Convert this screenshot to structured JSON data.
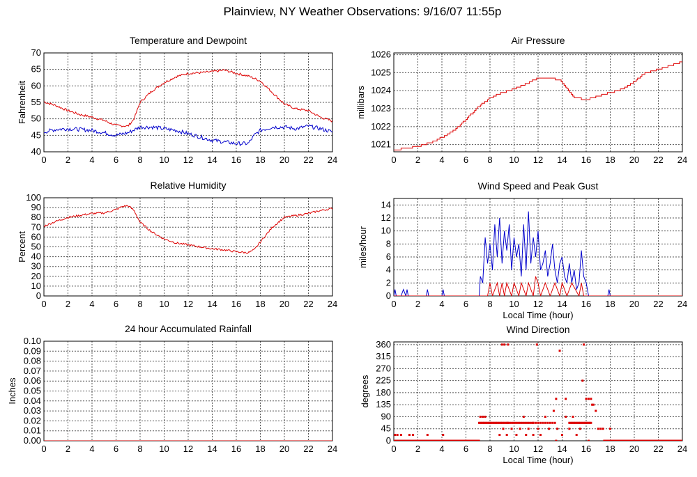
{
  "page": {
    "title": "Plainview, NY Weather Observations: 9/16/07 11:55p"
  },
  "colors": {
    "red": "#dd0000",
    "blue": "#0000cc",
    "grid": "#555555"
  },
  "chart_data": [
    {
      "id": "temp",
      "type": "line",
      "title": "Temperature and Dewpoint",
      "xlabel": "",
      "ylabel": "Fahrenheit",
      "xlim": [
        0,
        24
      ],
      "ylim": [
        40,
        70
      ],
      "xticks": [
        0,
        2,
        4,
        6,
        8,
        10,
        12,
        14,
        16,
        18,
        20,
        22,
        24
      ],
      "yticks": [
        40,
        45,
        50,
        55,
        60,
        65,
        70
      ],
      "grid": true,
      "series": [
        {
          "color": "red",
          "noise": 0.35,
          "x": [
            0,
            1,
            2,
            3,
            4,
            5,
            6,
            7,
            7.5,
            8,
            9,
            10,
            11,
            12,
            13,
            14,
            15,
            16,
            17,
            18,
            19,
            20,
            21,
            22,
            23,
            24
          ],
          "y": [
            55.2,
            54,
            52.5,
            51.3,
            50.5,
            49.5,
            48,
            47.8,
            50,
            55,
            58.5,
            61,
            62.8,
            63.8,
            64,
            64.3,
            64.8,
            63.8,
            63,
            61.5,
            58,
            54.5,
            53,
            52.5,
            50.5,
            49.3
          ]
        },
        {
          "color": "blue",
          "noise": 0.6,
          "x": [
            0,
            1,
            2,
            3,
            4,
            5,
            6,
            7,
            8,
            9,
            10,
            11,
            12,
            13,
            14,
            15,
            16,
            17,
            17.5,
            18,
            19,
            20,
            21,
            22,
            23,
            24
          ],
          "y": [
            46,
            46.8,
            47,
            46.8,
            46.5,
            45.8,
            45,
            45.8,
            47.5,
            47.5,
            47,
            46.5,
            45.5,
            44.5,
            43.5,
            43,
            42.5,
            42.5,
            45,
            46.5,
            47.5,
            47.5,
            47,
            47.8,
            47,
            46
          ]
        }
      ]
    },
    {
      "id": "pressure",
      "type": "line",
      "title": "Air Pressure",
      "xlabel": "",
      "ylabel": "millibars",
      "xlim": [
        0,
        24
      ],
      "ylim": [
        1020.6,
        1026.1
      ],
      "xticks": [
        0,
        2,
        4,
        6,
        8,
        10,
        12,
        14,
        16,
        18,
        20,
        22,
        24
      ],
      "yticks": [
        1021,
        1022,
        1023,
        1024,
        1025,
        1026
      ],
      "grid": true,
      "series": [
        {
          "color": "red",
          "noise": 0,
          "step": 0.1,
          "x": [
            0,
            1,
            2,
            3,
            4,
            5,
            6,
            7,
            8,
            9,
            10,
            11,
            12,
            13,
            13.8,
            14.5,
            15,
            16,
            17,
            18,
            19,
            20,
            20.5,
            21,
            22,
            23,
            24
          ],
          "y": [
            1020.7,
            1020.8,
            1020.9,
            1021.1,
            1021.4,
            1021.8,
            1022.4,
            1023.1,
            1023.6,
            1023.9,
            1024.1,
            1024.4,
            1024.7,
            1024.7,
            1024.6,
            1024.0,
            1023.6,
            1023.5,
            1023.7,
            1023.9,
            1024.1,
            1024.5,
            1024.8,
            1025.0,
            1025.2,
            1025.4,
            1025.6
          ]
        }
      ]
    },
    {
      "id": "humidity",
      "type": "line",
      "title": "Relative Humidity",
      "xlabel": "",
      "ylabel": "Percent",
      "xlim": [
        0,
        24
      ],
      "ylim": [
        0,
        100
      ],
      "xticks": [
        0,
        2,
        4,
        6,
        8,
        10,
        12,
        14,
        16,
        18,
        20,
        22,
        24
      ],
      "yticks": [
        0,
        10,
        20,
        30,
        40,
        50,
        60,
        70,
        80,
        90,
        100
      ],
      "grid": true,
      "series": [
        {
          "color": "red",
          "noise": 1.0,
          "x": [
            0,
            1,
            2,
            3,
            4,
            5,
            6,
            6.5,
            7,
            7.5,
            8,
            9,
            10,
            11,
            12,
            13,
            14,
            15,
            16,
            17,
            17.5,
            18,
            19,
            20,
            21,
            22,
            23,
            24
          ],
          "y": [
            71,
            76,
            80,
            82,
            84,
            84.5,
            88,
            91,
            92,
            87,
            75,
            65,
            58,
            54,
            52,
            50,
            48,
            47,
            45,
            44,
            47,
            55,
            70,
            80,
            82,
            84,
            87,
            89
          ]
        }
      ]
    },
    {
      "id": "wind",
      "type": "line",
      "title": "Wind Speed and Peak Gust",
      "xlabel": "Local Time (hour)",
      "ylabel": "miles/hour",
      "xlim": [
        0,
        24
      ],
      "ylim": [
        0,
        15
      ],
      "xticks": [
        0,
        2,
        4,
        6,
        8,
        10,
        12,
        14,
        16,
        18,
        20,
        22,
        24
      ],
      "yticks": [
        0,
        2,
        4,
        6,
        8,
        10,
        12,
        14
      ],
      "grid": true,
      "series": [
        {
          "color": "blue",
          "x": [
            0,
            0.1,
            0.2,
            0.6,
            0.8,
            1.0,
            1.1,
            1.2,
            2.7,
            2.8,
            2.9,
            4.0,
            4.1,
            4.2,
            7.1,
            7.2,
            7.4,
            7.6,
            7.8,
            8.0,
            8.2,
            8.4,
            8.6,
            8.8,
            9.0,
            9.2,
            9.4,
            9.6,
            9.8,
            10.0,
            10.2,
            10.4,
            10.6,
            10.8,
            11.0,
            11.2,
            11.4,
            11.6,
            11.8,
            12.0,
            12.2,
            12.4,
            12.6,
            12.8,
            13.0,
            13.2,
            13.4,
            13.6,
            13.8,
            14.0,
            14.2,
            14.4,
            14.6,
            14.8,
            15.0,
            15.2,
            15.4,
            15.6,
            15.8,
            16.0,
            16.2,
            17.8,
            17.9,
            18.0,
            24
          ],
          "y": [
            0,
            1,
            0,
            0,
            1,
            0,
            1,
            0,
            0,
            1,
            0,
            0,
            1,
            0,
            0,
            3,
            2,
            9,
            5,
            8,
            4,
            11,
            6,
            12,
            5,
            10,
            7,
            11,
            4,
            9,
            6,
            8,
            3,
            11,
            4,
            13,
            5,
            9,
            6,
            10,
            4,
            5,
            7,
            3,
            5,
            8,
            4,
            2,
            5,
            6,
            3,
            2,
            5,
            2,
            4,
            1,
            2,
            7,
            3,
            2,
            0,
            0,
            1,
            0,
            0
          ]
        },
        {
          "color": "red",
          "x": [
            0,
            7.8,
            8.0,
            8.2,
            8.6,
            8.8,
            9.0,
            9.2,
            9.4,
            9.8,
            10.0,
            10.4,
            10.6,
            11.0,
            11.2,
            11.6,
            11.8,
            12.0,
            12.2,
            12.6,
            13.0,
            13.4,
            13.8,
            14.0,
            14.4,
            14.8,
            15.4,
            15.6,
            15.8,
            16.0,
            24
          ],
          "y": [
            0,
            0,
            2,
            0,
            2,
            0,
            2,
            0,
            2,
            0,
            2,
            0,
            2,
            0,
            2,
            0,
            3,
            2,
            0,
            2,
            0,
            2,
            0,
            2,
            0,
            2,
            0,
            2,
            0,
            0,
            0
          ]
        }
      ]
    },
    {
      "id": "rain",
      "type": "line",
      "title": "24 hour Accumulated Rainfall",
      "xlabel": "",
      "ylabel": "Inches",
      "xlim": [
        0,
        24
      ],
      "ylim": [
        0,
        0.1
      ],
      "xticks": [
        0,
        2,
        4,
        6,
        8,
        10,
        12,
        14,
        16,
        18,
        20,
        22,
        24
      ],
      "yticks": [
        "0.00",
        "0.01",
        "0.02",
        "0.03",
        "0.04",
        "0.05",
        "0.06",
        "0.07",
        "0.08",
        "0.09",
        "0.10"
      ],
      "grid": true,
      "series": [
        {
          "color": "red",
          "noise": 0,
          "x": [
            0,
            24
          ],
          "y": [
            0,
            0
          ]
        }
      ]
    },
    {
      "id": "direction",
      "type": "scatter",
      "title": "Wind Direction",
      "xlabel": "Local Time (hour)",
      "ylabel": "degrees",
      "xlim": [
        0,
        24
      ],
      "ylim": [
        0,
        370
      ],
      "xticks": [
        0,
        2,
        4,
        6,
        8,
        10,
        12,
        14,
        16,
        18,
        20,
        22,
        24
      ],
      "yticks": [
        0,
        45,
        90,
        135,
        180,
        225,
        270,
        315,
        360
      ],
      "grid": true,
      "series": [
        {
          "color": "red",
          "points": [
            [
              0.1,
              22
            ],
            [
              0.3,
              22
            ],
            [
              0.6,
              22
            ],
            [
              1.3,
              22
            ],
            [
              1.6,
              22
            ],
            [
              2.8,
              22
            ],
            [
              4.1,
              22
            ],
            [
              7.2,
              90
            ],
            [
              7.4,
              90
            ],
            [
              7.6,
              90
            ],
            [
              8.8,
              22
            ],
            [
              9.1,
              45
            ],
            [
              9.4,
              22
            ],
            [
              9.8,
              45
            ],
            [
              10.2,
              22
            ],
            [
              10.5,
              45
            ],
            [
              10.8,
              90
            ],
            [
              11.0,
              22
            ],
            [
              11.2,
              45
            ],
            [
              11.6,
              22
            ],
            [
              12.0,
              45
            ],
            [
              12.2,
              22
            ],
            [
              12.6,
              90
            ],
            [
              12.9,
              45
            ],
            [
              13.3,
              112
            ],
            [
              13.6,
              45
            ],
            [
              14.0,
              22
            ],
            [
              14.3,
              90
            ],
            [
              14.6,
              45
            ],
            [
              14.9,
              90
            ],
            [
              15.2,
              22
            ],
            [
              15.5,
              45
            ],
            [
              9.0,
              360
            ],
            [
              9.2,
              360
            ],
            [
              9.5,
              360
            ],
            [
              11.9,
              360
            ],
            [
              13.8,
              337
            ],
            [
              15.8,
              360
            ],
            [
              15.7,
              225
            ],
            [
              16.2,
              0
            ],
            [
              13.5,
              157
            ],
            [
              14.3,
              157
            ],
            [
              16.0,
              157
            ],
            [
              16.2,
              157
            ],
            [
              16.4,
              157
            ],
            [
              16.5,
              135
            ],
            [
              16.6,
              135
            ],
            [
              16.8,
              112
            ],
            [
              17.0,
              45
            ],
            [
              17.2,
              45
            ],
            [
              17.4,
              45
            ],
            [
              17.6,
              0
            ],
            [
              18.0,
              45
            ],
            [
              13.5,
              0
            ]
          ],
          "runs": [
            {
              "x0": 0,
              "x1": 7.1,
              "y": 0,
              "step": 0.06
            },
            {
              "x0": 7.1,
              "x1": 9.5,
              "y": 67,
              "step": 0.1
            },
            {
              "x0": 9.5,
              "x1": 11.6,
              "y": 67,
              "step": 0.15
            },
            {
              "x0": 11.6,
              "x1": 13.5,
              "y": 67,
              "step": 0.2
            },
            {
              "x0": 14.6,
              "x1": 16.4,
              "y": 67,
              "step": 0.1
            },
            {
              "x0": 17.5,
              "x1": 24,
              "y": 0,
              "step": 0.06
            }
          ]
        }
      ]
    }
  ]
}
